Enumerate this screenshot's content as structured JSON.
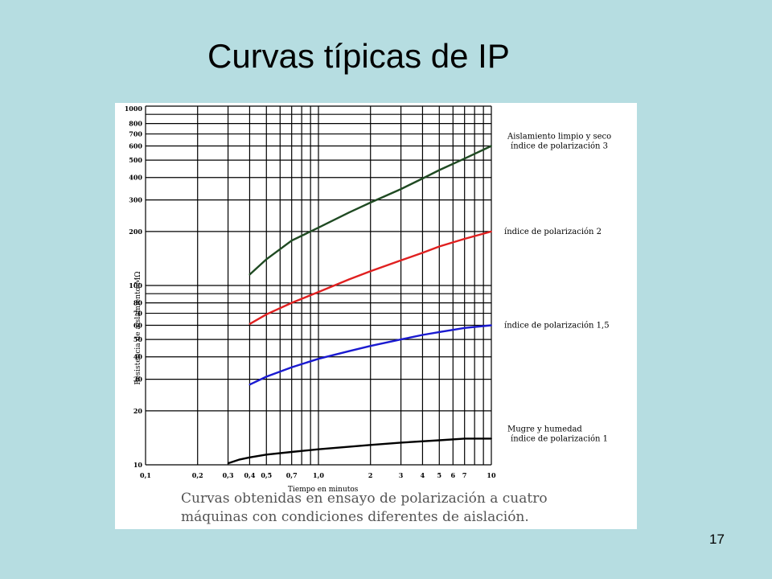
{
  "slide": {
    "title": "Curvas típicas de IP",
    "page_number": "17",
    "background_color": "#b6dde1"
  },
  "chart_data": {
    "type": "line",
    "title": "",
    "xlabel": "Tiempo en minutos",
    "ylabel": "Resistencia de aislamiento MΩ",
    "x_scale": "log",
    "y_scale": "log",
    "xlim": [
      0.1,
      10
    ],
    "ylim": [
      10,
      1000
    ],
    "grid": true,
    "x_tick_labels": [
      {
        "x": 0.1,
        "label": "0,1"
      },
      {
        "x": 0.2,
        "label": "0,2"
      },
      {
        "x": 0.3,
        "label": "0,3"
      },
      {
        "x": 0.4,
        "label": "0,4"
      },
      {
        "x": 0.5,
        "label": "0,5"
      },
      {
        "x": 0.7,
        "label": "0,7"
      },
      {
        "x": 1,
        "label": "1,0"
      },
      {
        "x": 2,
        "label": "2"
      },
      {
        "x": 3,
        "label": "3"
      },
      {
        "x": 4,
        "label": "4"
      },
      {
        "x": 5,
        "label": "5"
      },
      {
        "x": 6,
        "label": "6"
      },
      {
        "x": 7,
        "label": "7"
      },
      {
        "x": 10,
        "label": "10"
      }
    ],
    "x_gridlines": [
      0.1,
      0.2,
      0.3,
      0.4,
      0.5,
      0.6,
      0.7,
      0.8,
      0.9,
      1,
      2,
      3,
      4,
      5,
      6,
      7,
      8,
      9,
      10
    ],
    "y_tick_labels": [
      {
        "y": 10,
        "label": "10"
      },
      {
        "y": 20,
        "label": "20"
      },
      {
        "y": 30,
        "label": "30"
      },
      {
        "y": 40,
        "label": "40"
      },
      {
        "y": 50,
        "label": "50"
      },
      {
        "y": 60,
        "label": "60"
      },
      {
        "y": 70,
        "label": "70"
      },
      {
        "y": 80,
        "label": "80"
      },
      {
        "y": 100,
        "label": "100"
      },
      {
        "y": 200,
        "label": "200"
      },
      {
        "y": 300,
        "label": "300"
      },
      {
        "y": 400,
        "label": "400"
      },
      {
        "y": 500,
        "label": "500"
      },
      {
        "y": 600,
        "label": "600"
      },
      {
        "y": 700,
        "label": "700"
      },
      {
        "y": 800,
        "label": "800"
      },
      {
        "y": 1000,
        "label": "1000"
      }
    ],
    "y_gridlines": [
      10,
      20,
      30,
      40,
      50,
      60,
      70,
      80,
      90,
      100,
      200,
      300,
      400,
      500,
      600,
      700,
      800,
      900,
      1000
    ],
    "series": [
      {
        "name": "Aislamiento limpio y seco",
        "label_line2": "índice de polarización 3",
        "color": "#1f4a22",
        "x": [
          0.4,
          0.5,
          0.7,
          1,
          1.5,
          2,
          3,
          4,
          5,
          7,
          10
        ],
        "y": [
          115,
          140,
          178,
          210,
          255,
          290,
          345,
          395,
          440,
          510,
          600
        ]
      },
      {
        "name": "índice de polarización 2",
        "label_line2": "",
        "color": "#e02020",
        "x": [
          0.4,
          0.5,
          0.7,
          1,
          1.5,
          2,
          3,
          4,
          5,
          7,
          10
        ],
        "y": [
          61,
          69,
          80,
          92,
          108,
          120,
          138,
          152,
          165,
          182,
          200
        ]
      },
      {
        "name": "índice de polarización 1,5",
        "label_line2": "",
        "color": "#1a1ad0",
        "x": [
          0.4,
          0.5,
          0.7,
          1,
          1.5,
          2,
          3,
          4,
          5,
          7,
          10
        ],
        "y": [
          28,
          31,
          35,
          39,
          43,
          46,
          50,
          53,
          55,
          58,
          60
        ]
      },
      {
        "name": "Mugre y humedad",
        "label_line2": "índice de polarización 1",
        "color": "#000000",
        "x": [
          0.3,
          0.35,
          0.4,
          0.5,
          0.7,
          1,
          2,
          3,
          5,
          7,
          10
        ],
        "y": [
          10.2,
          10.7,
          11,
          11.4,
          11.8,
          12.2,
          12.9,
          13.3,
          13.7,
          14,
          14
        ]
      }
    ],
    "caption_line1": "Curvas obtenidas en ensayo de polarización a cuatro",
    "caption_line2": "máquinas con condiciones diferentes de aislación."
  }
}
